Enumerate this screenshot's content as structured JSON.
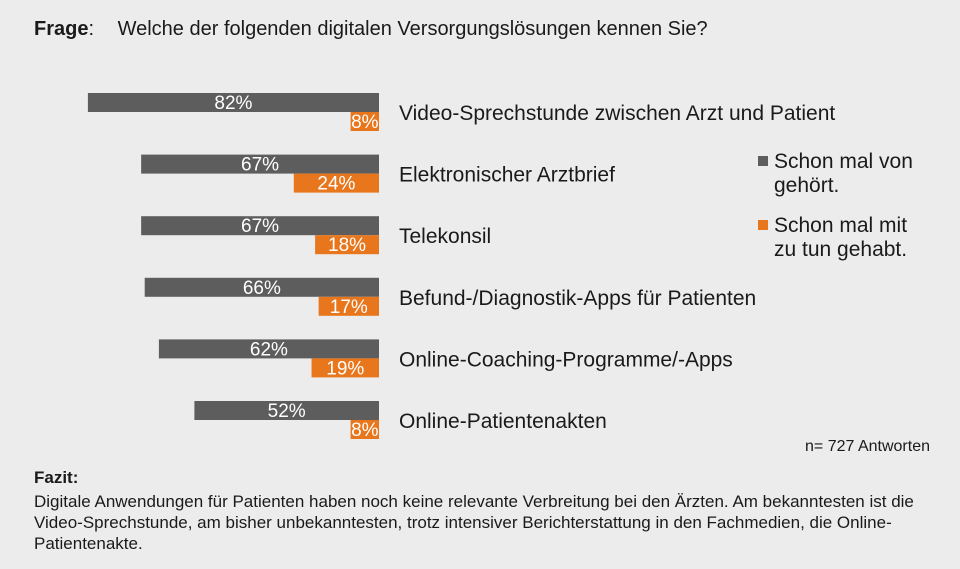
{
  "question": {
    "label": "Frage",
    "text": "Welche der folgenden digitalen Versorgungslösungen kennen Sie?"
  },
  "chart_data": {
    "type": "bar",
    "orientation": "horizontal",
    "direction": "right-to-left",
    "categories": [
      "Video-Sprechstunde zwischen Arzt und Patient",
      "Elektronischer Arztbrief",
      "Telekonsil",
      "Befund-/Diagnostik-Apps für Patienten",
      "Online-Coaching-Programme/-Apps",
      "Online-Patientenakten"
    ],
    "series": [
      {
        "name": "Schon mal von gehört.",
        "color": "#5d5d5d",
        "values": [
          82,
          67,
          67,
          66,
          62,
          52
        ]
      },
      {
        "name": "Schon mal mit zu tun gehabt.",
        "color": "#e8761c",
        "values": [
          8,
          24,
          18,
          17,
          19,
          8
        ]
      }
    ],
    "value_suffix": "%",
    "xlim": [
      0,
      100
    ],
    "grid": false,
    "legend_placement": "right"
  },
  "note": "n= 727 Antworten",
  "conclusion": {
    "label": "Fazit",
    "text": "Digitale Anwendungen für Patienten haben noch keine relevante Verbreitung bei den Ärzten. Am bekanntesten ist die Video-Sprechstunde, am bisher unbekanntesten, trotz intensiver Berichterstattung in den Fachmedien, die Online-Patientenakte."
  }
}
